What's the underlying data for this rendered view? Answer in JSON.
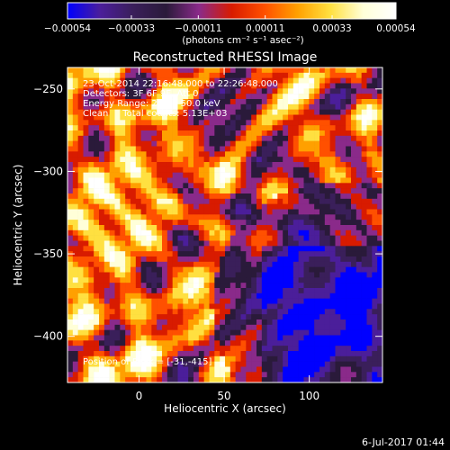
{
  "chart_data": {
    "type": "heatmap",
    "title": "Reconstructed RHESSI Image",
    "xlabel": "Heliocentric X (arcsec)",
    "ylabel": "Heliocentric Y (arcsec)",
    "xlim": [
      -42,
      143
    ],
    "ylim": [
      -428,
      -237
    ],
    "xticks": [
      0,
      50,
      100
    ],
    "yticks": [
      -400,
      -350,
      -300,
      -250
    ],
    "colorbar": {
      "range": [
        -0.00054,
        0.00054
      ],
      "tick_labels": [
        "-0.00054",
        "-0.00033",
        "-0.00011",
        "0.00011",
        "0.00033",
        "0.00054"
      ],
      "unit_label": "(photons cm⁻² s⁻¹ asec⁻²)",
      "colors": [
        "#0000ff",
        "#4b1e9a",
        "#3a1f5a",
        "#2a1a3a",
        "#8a2a8a",
        "#d81b00",
        "#ff5000",
        "#ffa000",
        "#ffe040",
        "#ffffd8",
        "#ffffff"
      ]
    },
    "annotations": [
      "23-Oct-2014 22:16:48.000 to 22:26:48.000",
      "Detectors: 3F 6F 9F, Att 0",
      "Energy Range: 25.0 - 50.0 keV",
      "Clean     Total counts: 5.13E+03"
    ],
    "peak_label": "Position of Peak = [-31,-415]",
    "timestamp": "6-Jul-2017 01:44"
  }
}
